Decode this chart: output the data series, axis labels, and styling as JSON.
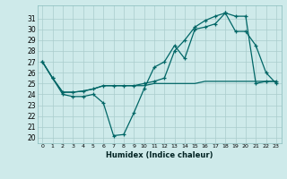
{
  "xlabel": "Humidex (Indice chaleur)",
  "background_color": "#ceeaea",
  "grid_color": "#aacccc",
  "line_color": "#006666",
  "xlim": [
    -0.5,
    23.5
  ],
  "ylim": [
    19.5,
    32.2
  ],
  "xticks": [
    0,
    1,
    2,
    3,
    4,
    5,
    6,
    7,
    8,
    9,
    10,
    11,
    12,
    13,
    14,
    15,
    16,
    17,
    18,
    19,
    20,
    21,
    22,
    23
  ],
  "yticks": [
    20,
    21,
    22,
    23,
    24,
    25,
    26,
    27,
    28,
    29,
    30,
    31
  ],
  "line1_x": [
    0,
    1,
    2,
    3,
    4,
    5,
    6,
    7,
    8,
    9,
    10,
    11,
    12,
    13,
    14,
    15,
    16,
    17,
    18,
    19,
    20,
    21,
    22,
    23
  ],
  "line1_y": [
    27.0,
    25.5,
    24.0,
    23.8,
    23.8,
    24.0,
    23.2,
    20.2,
    20.3,
    22.3,
    24.5,
    26.5,
    27.0,
    28.5,
    27.3,
    30.0,
    30.2,
    30.5,
    31.5,
    29.8,
    29.8,
    28.5,
    26.0,
    25.0
  ],
  "line2_x": [
    0,
    1,
    2,
    3,
    4,
    5,
    6,
    7,
    8,
    9,
    10,
    11,
    12,
    13,
    14,
    15,
    16,
    17,
    18,
    19,
    20,
    21,
    22,
    23
  ],
  "line2_y": [
    27.0,
    25.5,
    24.2,
    24.2,
    24.3,
    24.5,
    24.8,
    24.8,
    24.8,
    24.8,
    25.0,
    25.2,
    25.5,
    28.0,
    29.0,
    30.2,
    30.8,
    31.2,
    31.5,
    31.2,
    31.2,
    25.0,
    25.2,
    25.2
  ],
  "line3_x": [
    0,
    1,
    2,
    3,
    4,
    5,
    6,
    7,
    8,
    9,
    10,
    11,
    12,
    13,
    14,
    15,
    16,
    17,
    18,
    19,
    20,
    21,
    22,
    23
  ],
  "line3_y": [
    27.0,
    25.5,
    24.2,
    24.2,
    24.3,
    24.5,
    24.8,
    24.8,
    24.8,
    24.8,
    24.8,
    25.0,
    25.0,
    25.0,
    25.0,
    25.0,
    25.2,
    25.2,
    25.2,
    25.2,
    25.2,
    25.2,
    25.2,
    25.2
  ]
}
